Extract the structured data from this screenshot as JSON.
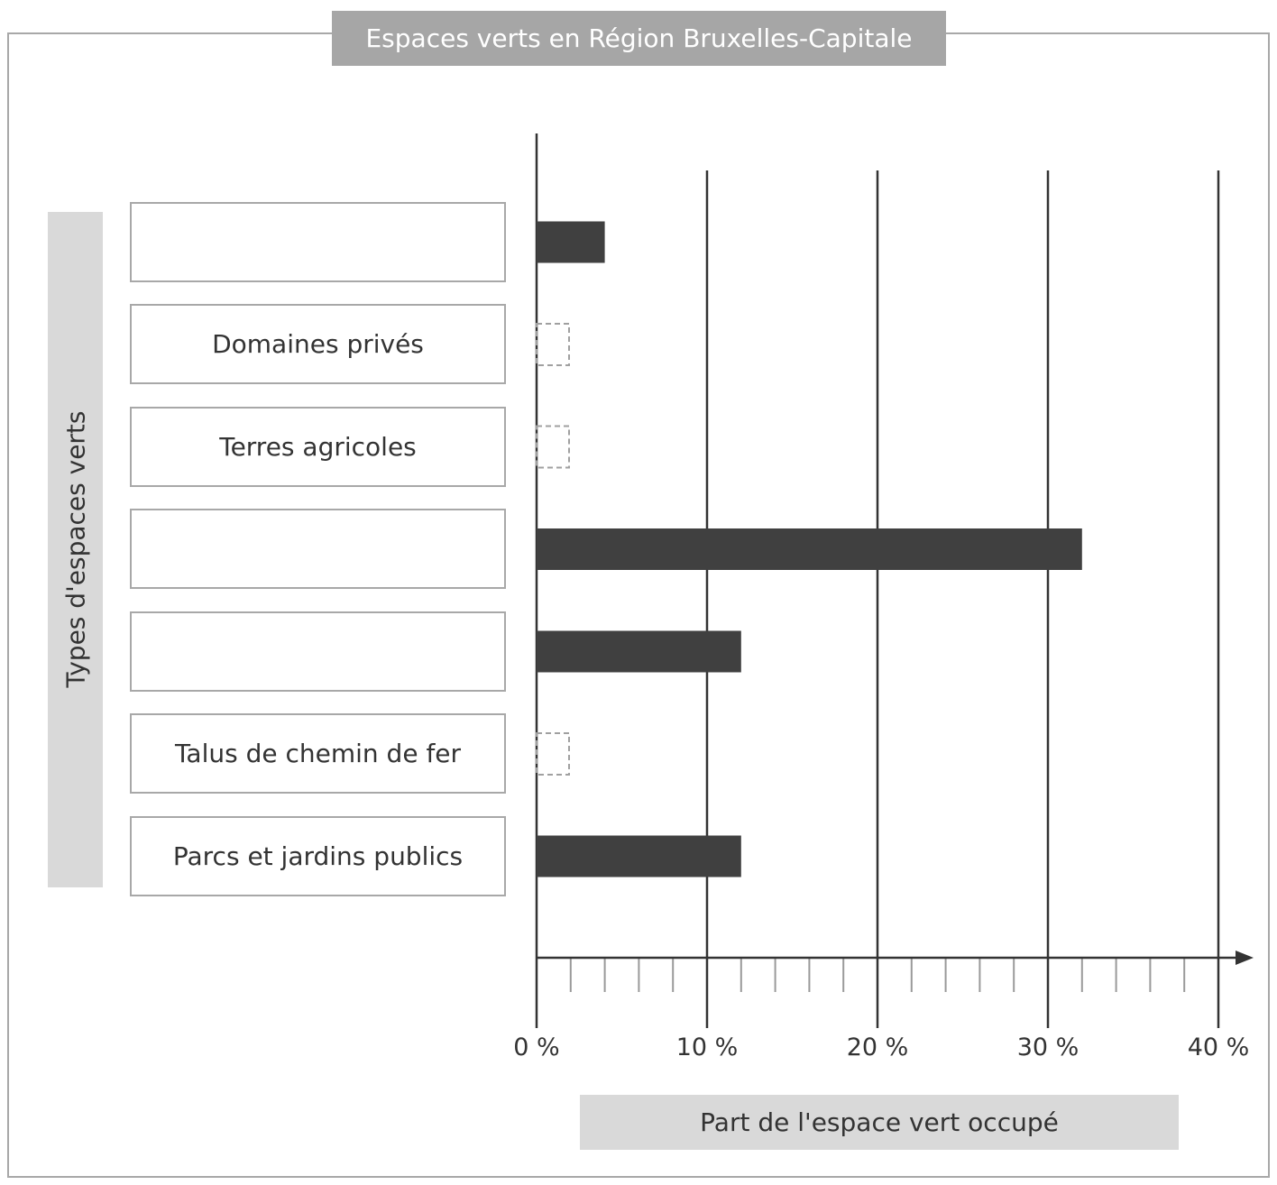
{
  "chart_data": {
    "type": "bar",
    "orientation": "horizontal",
    "title": "Espaces verts en Région Bruxelles-Capitale",
    "xlabel": "Part de l'espace vert occupé",
    "ylabel": "Types d'espaces verts",
    "xlim": [
      0,
      40
    ],
    "xticks": [
      0,
      10,
      20,
      30,
      40
    ],
    "xtick_labels": [
      "0 %",
      "10 %",
      "20 %",
      "30 %",
      "40 %"
    ],
    "minor_tick_step": 2,
    "grid": true,
    "categories": [
      "",
      "Domaines privés",
      "Terres agricoles",
      "",
      "",
      "Talus de chemin de fer",
      "Parcs et jardins publics"
    ],
    "values": [
      4,
      null,
      null,
      32,
      12,
      null,
      12
    ],
    "colors": {
      "bar": "#404040",
      "frame": "#a8a8a8",
      "header": "#a6a6a6",
      "label_bg": "#d9d9d9",
      "placeholder": "#a0a0a0"
    }
  }
}
